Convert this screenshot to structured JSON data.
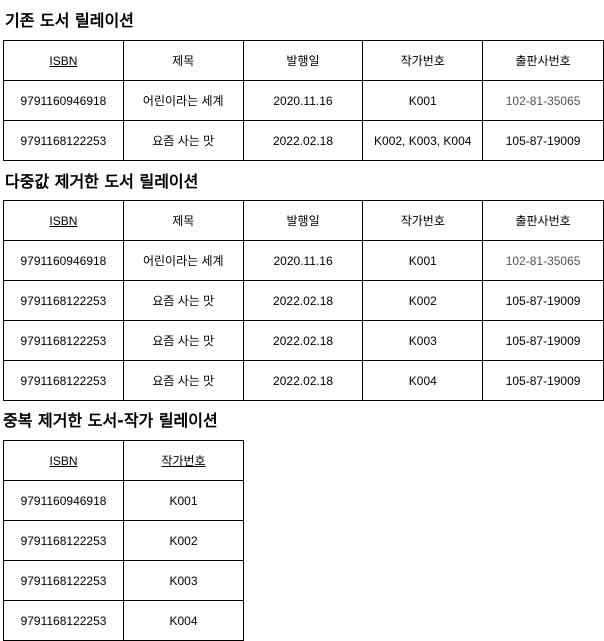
{
  "sections": [
    {
      "title": "기존 도서 릴레이션",
      "headers": [
        "ISBN",
        "제목",
        "발행일",
        "작가번호",
        "출판사번호"
      ],
      "rows": [
        [
          "9791160946918",
          "어린이라는 세계",
          "2020.11.16",
          "K001",
          "102-81-35065"
        ],
        [
          "9791168122253",
          "요즘 사는 맛",
          "2022.02.18",
          "K002, K003, K004",
          "105-87-19009"
        ]
      ]
    },
    {
      "title": "다중값 제거한 도서 릴레이션",
      "headers": [
        "ISBN",
        "제목",
        "발행일",
        "작가번호",
        "출판사번호"
      ],
      "rows": [
        [
          "9791160946918",
          "어린이라는 세계",
          "2020.11.16",
          "K001",
          "102-81-35065"
        ],
        [
          "9791168122253",
          "요즘 사는 맛",
          "2022.02.18",
          "K002",
          "105-87-19009"
        ],
        [
          "9791168122253",
          "요즘 사는 맛",
          "2022.02.18",
          "K003",
          "105-87-19009"
        ],
        [
          "9791168122253",
          "요즘 사는 맛",
          "2022.02.18",
          "K004",
          "105-87-19009"
        ]
      ]
    },
    {
      "title": "중복 제거한 도서-작가 릴레이션",
      "headers": [
        "ISBN",
        "작가번호"
      ],
      "rows": [
        [
          "9791160946918",
          "K001"
        ],
        [
          "9791168122253",
          "K002"
        ],
        [
          "9791168122253",
          "K003"
        ],
        [
          "9791168122253",
          "K004"
        ]
      ]
    }
  ]
}
